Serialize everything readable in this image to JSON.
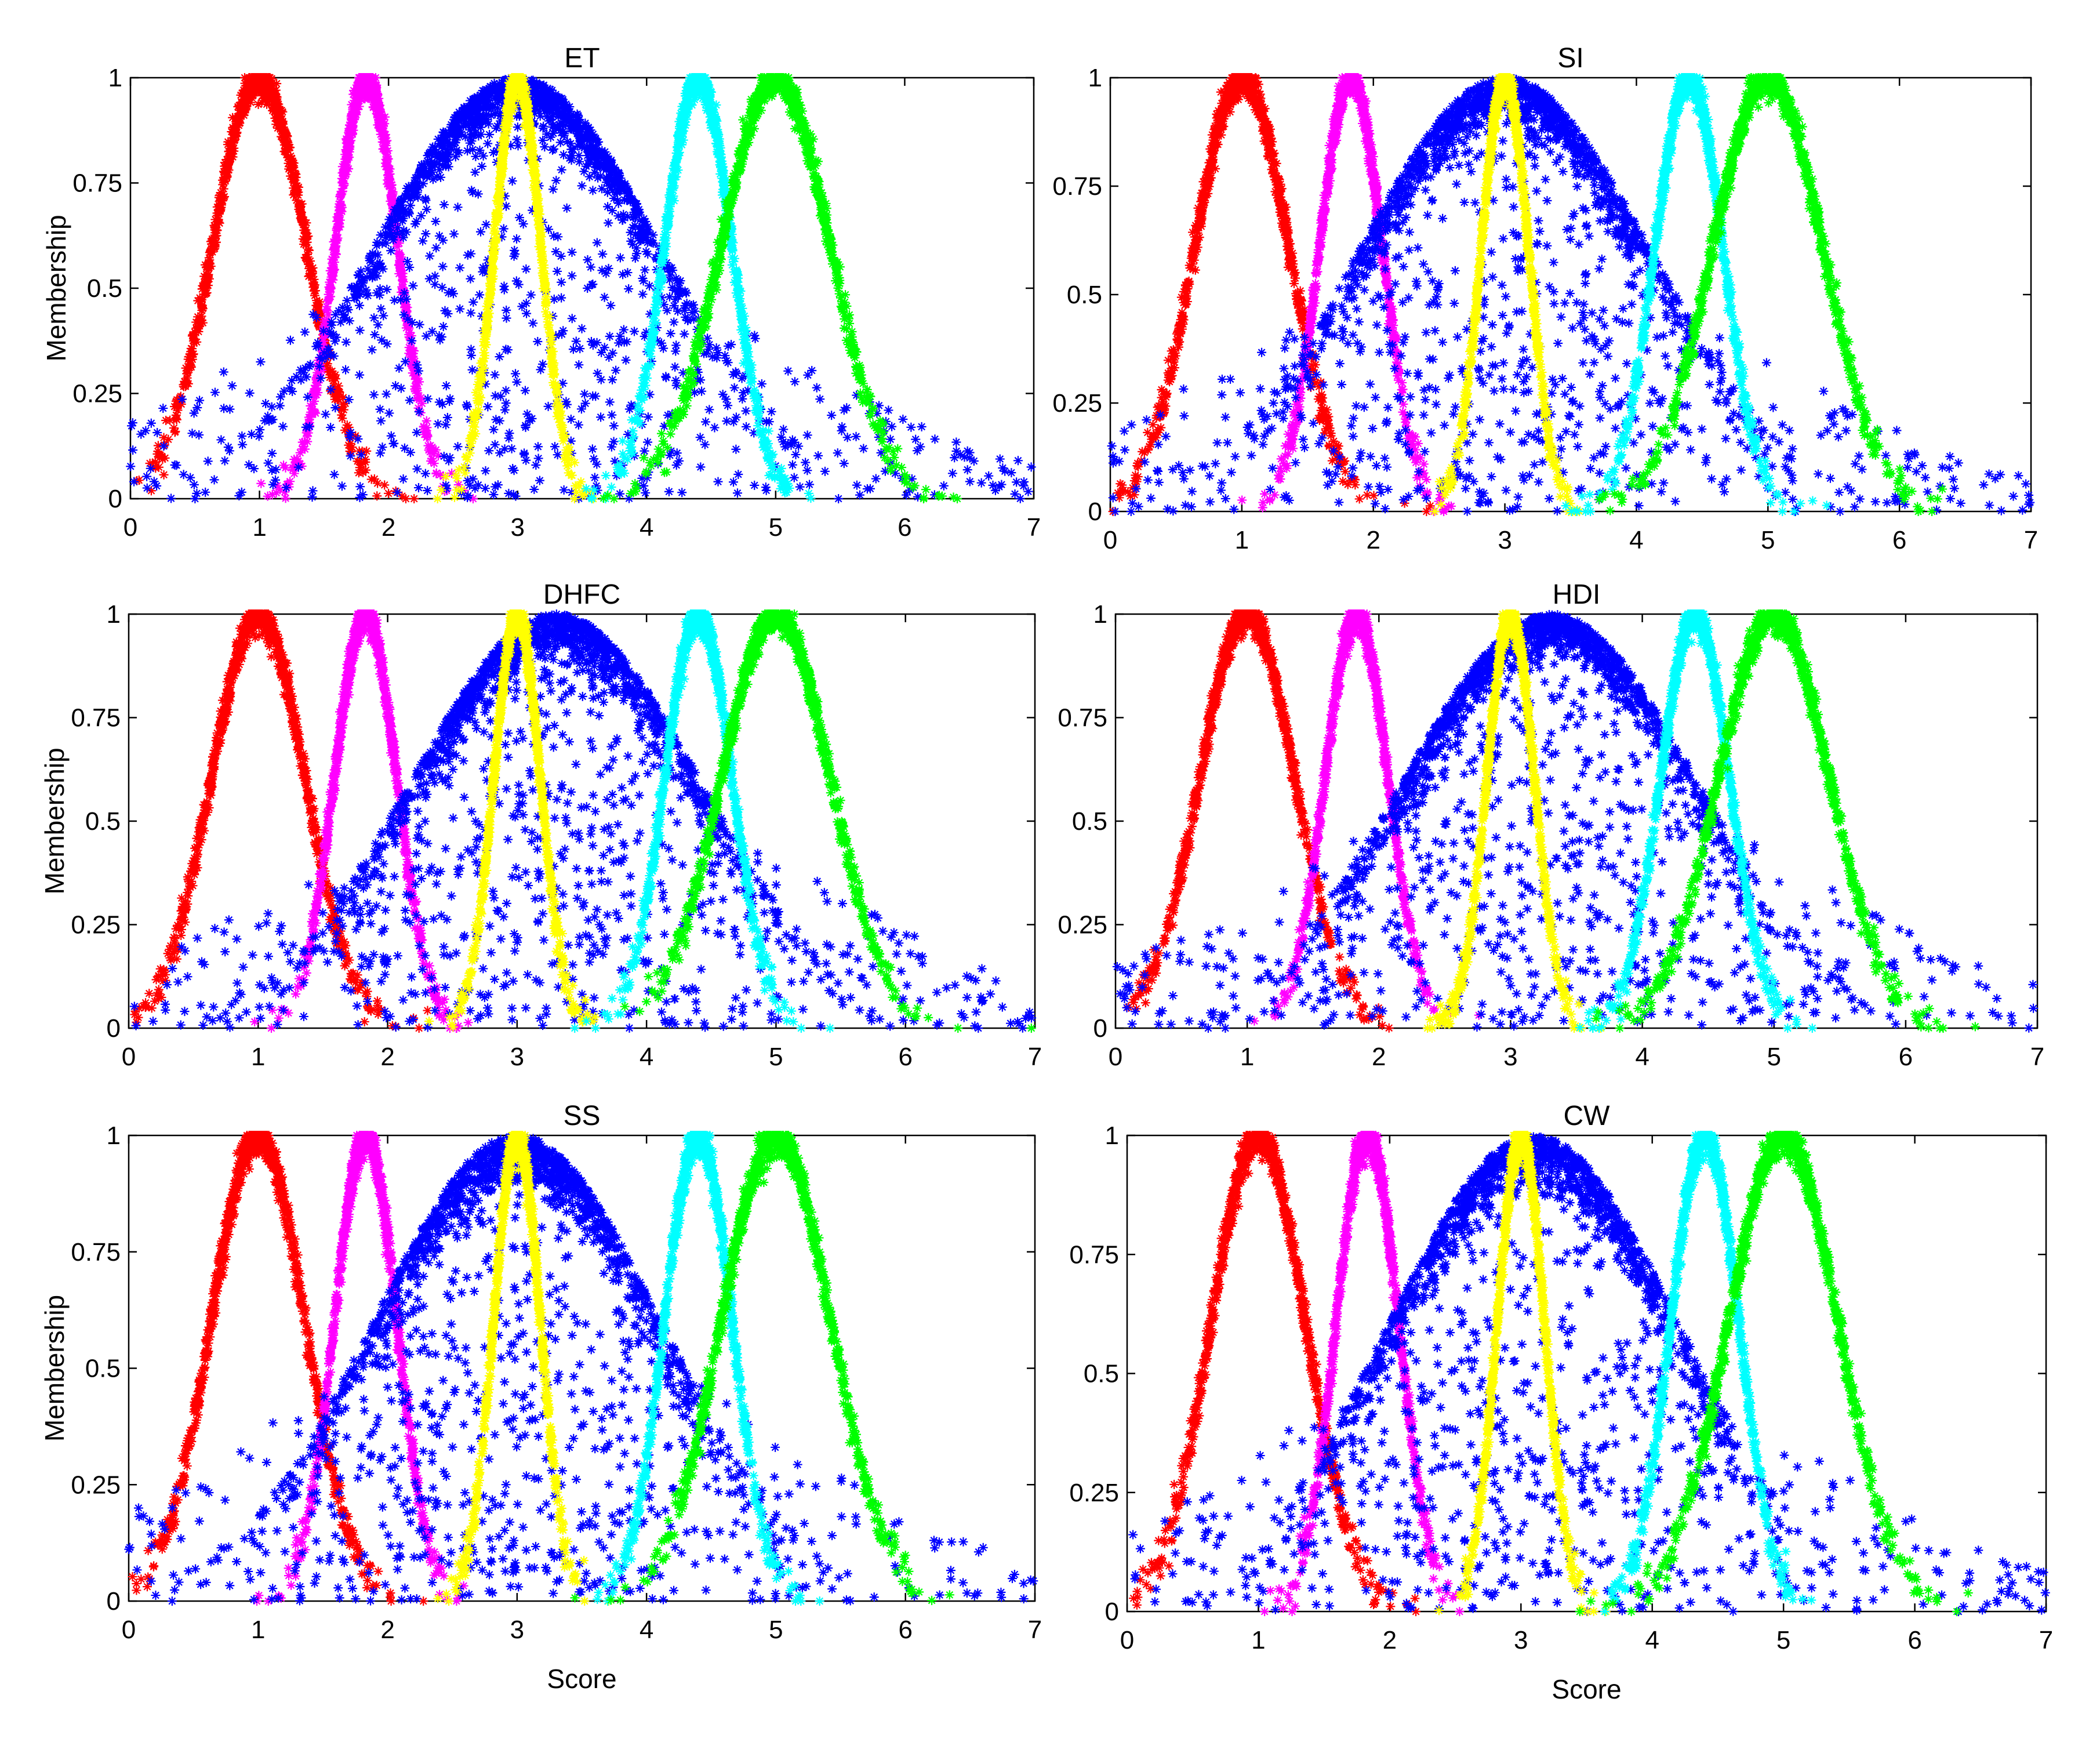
{
  "chart_data": {
    "type": "scatter",
    "marker": "asterisk",
    "xlim": [
      0,
      7
    ],
    "ylim": [
      0,
      1
    ],
    "xticks": [
      "0",
      "1",
      "2",
      "3",
      "4",
      "5",
      "6",
      "7"
    ],
    "yticks": [
      "0",
      "0.25",
      "0.5",
      "0.75",
      "1"
    ],
    "ylabel": "Membership",
    "xlabel": "Score",
    "grid": false,
    "series_style": [
      {
        "color": "#ff0000",
        "center": 1.0,
        "sigma": 0.36
      },
      {
        "color": "#ff00ff",
        "center": 1.83,
        "sigma": 0.24
      },
      {
        "color": "#0000ff",
        "center": 3.0,
        "sigma": 1.1
      },
      {
        "color": "#ffff00",
        "center": 3.0,
        "sigma": 0.18
      },
      {
        "color": "#00ffff",
        "center": 4.4,
        "sigma": 0.26
      },
      {
        "color": "#00ff00",
        "center": 5.0,
        "sigma": 0.42
      }
    ],
    "panels": [
      {
        "title": "ET",
        "blue_center": 3.0
      },
      {
        "title": "SI",
        "blue_center": 3.0
      },
      {
        "title": "DHFC",
        "blue_center": 3.3
      },
      {
        "title": "HDI",
        "blue_center": 3.3
      },
      {
        "title": "SS",
        "blue_center": 3.0
      },
      {
        "title": "CW",
        "blue_center": 3.1
      }
    ]
  }
}
